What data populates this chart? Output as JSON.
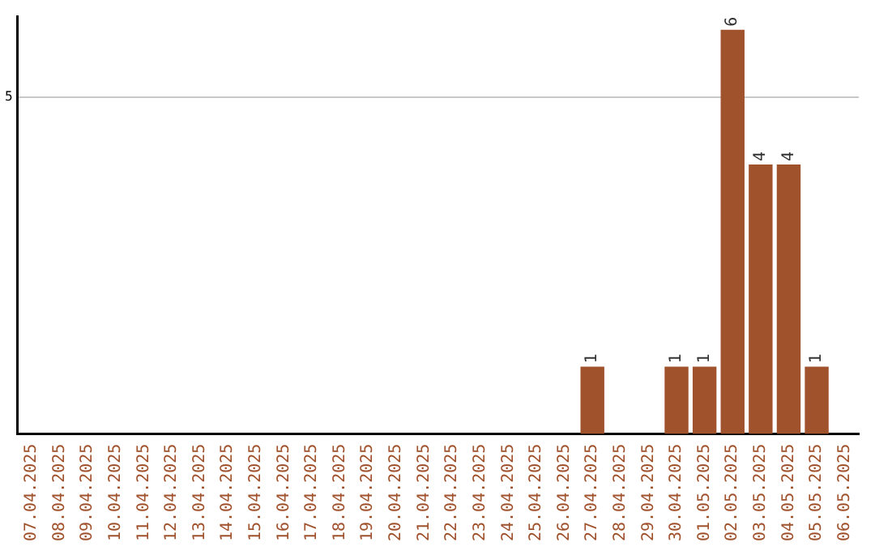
{
  "chart_data": {
    "type": "bar",
    "categories": [
      "07.04.2025",
      "08.04.2025",
      "09.04.2025",
      "10.04.2025",
      "11.04.2025",
      "12.04.2025",
      "13.04.2025",
      "14.04.2025",
      "15.04.2025",
      "16.04.2025",
      "17.04.2025",
      "18.04.2025",
      "19.04.2025",
      "20.04.2025",
      "21.04.2025",
      "22.04.2025",
      "23.04.2025",
      "24.04.2025",
      "25.04.2025",
      "26.04.2025",
      "27.04.2025",
      "28.04.2025",
      "29.04.2025",
      "30.04.2025",
      "01.05.2025",
      "02.05.2025",
      "03.05.2025",
      "04.05.2025",
      "05.05.2025",
      "06.05.2025"
    ],
    "values": [
      null,
      null,
      null,
      null,
      null,
      null,
      null,
      null,
      null,
      null,
      null,
      null,
      null,
      null,
      null,
      null,
      null,
      null,
      null,
      null,
      1,
      null,
      null,
      1,
      1,
      6,
      4,
      4,
      1,
      null
    ],
    "color": "#a0522d",
    "ylim": [
      0,
      6.2
    ],
    "yticks": [
      5
    ],
    "grid": "y",
    "data_labels": true
  }
}
